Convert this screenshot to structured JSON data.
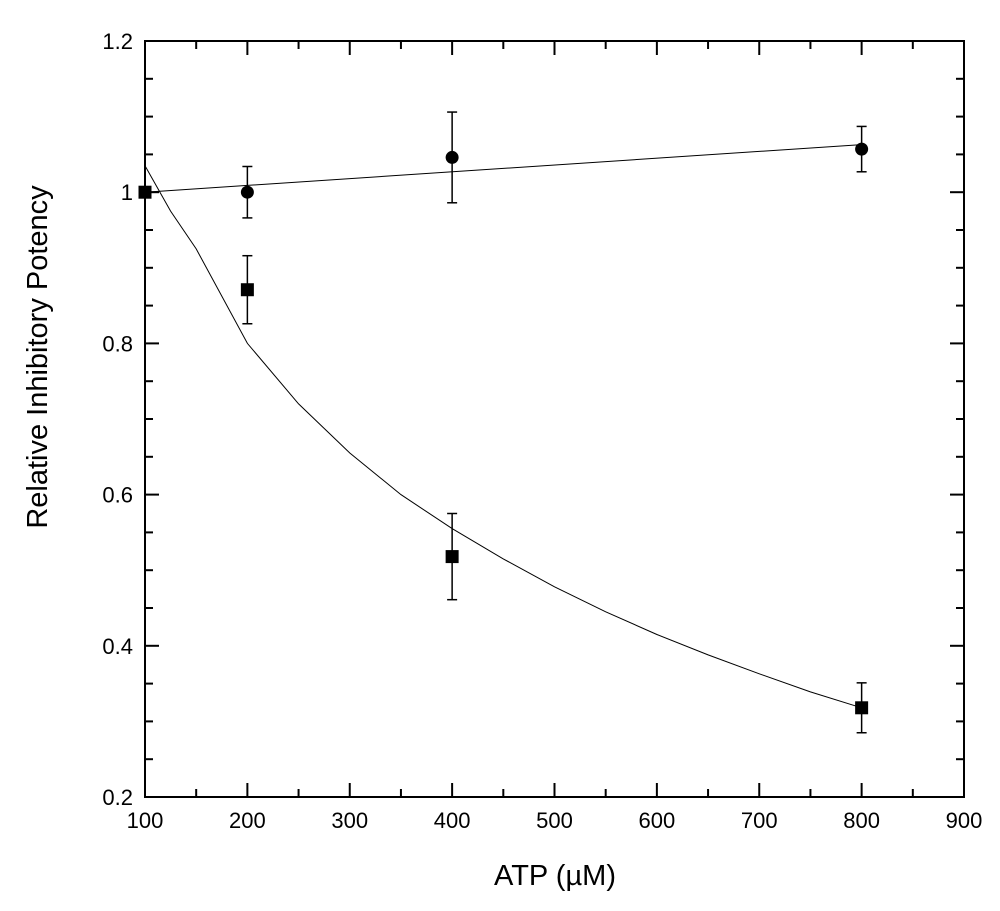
{
  "chart_data": {
    "type": "scatter",
    "xlabel": "ATP (µM)",
    "ylabel": "Relative Inhibitory Potency",
    "xlim": [
      100,
      900
    ],
    "ylim": [
      0.2,
      1.2
    ],
    "x_ticks": [
      "100",
      "200",
      "300",
      "400",
      "500",
      "600",
      "700",
      "800",
      "900"
    ],
    "y_ticks": [
      "0.2",
      "0.4",
      "0.6",
      "0.8",
      "1",
      "1.2"
    ],
    "grid": false,
    "series": [
      {
        "marker": "circle",
        "fit": "line",
        "x": [
          200,
          400,
          800
        ],
        "y": [
          1.0,
          1.046,
          1.057
        ],
        "err": [
          0.034,
          0.06,
          0.03
        ],
        "fit_x": [
          100,
          800
        ],
        "fit_y": [
          1.0,
          1.063
        ]
      },
      {
        "marker": "square",
        "fit": "curve",
        "x": [
          100,
          200,
          400,
          800
        ],
        "y": [
          1.0,
          0.871,
          0.518,
          0.318
        ],
        "err": [
          0.0,
          0.045,
          0.057,
          0.033
        ],
        "fit_x": [
          100,
          125,
          150,
          200,
          250,
          300,
          350,
          400,
          450,
          500,
          550,
          600,
          650,
          700,
          750,
          800
        ],
        "fit_y": [
          1.035,
          0.975,
          0.925,
          0.8,
          0.72,
          0.655,
          0.6,
          0.555,
          0.515,
          0.478,
          0.445,
          0.415,
          0.388,
          0.363,
          0.339,
          0.318
        ]
      }
    ]
  }
}
